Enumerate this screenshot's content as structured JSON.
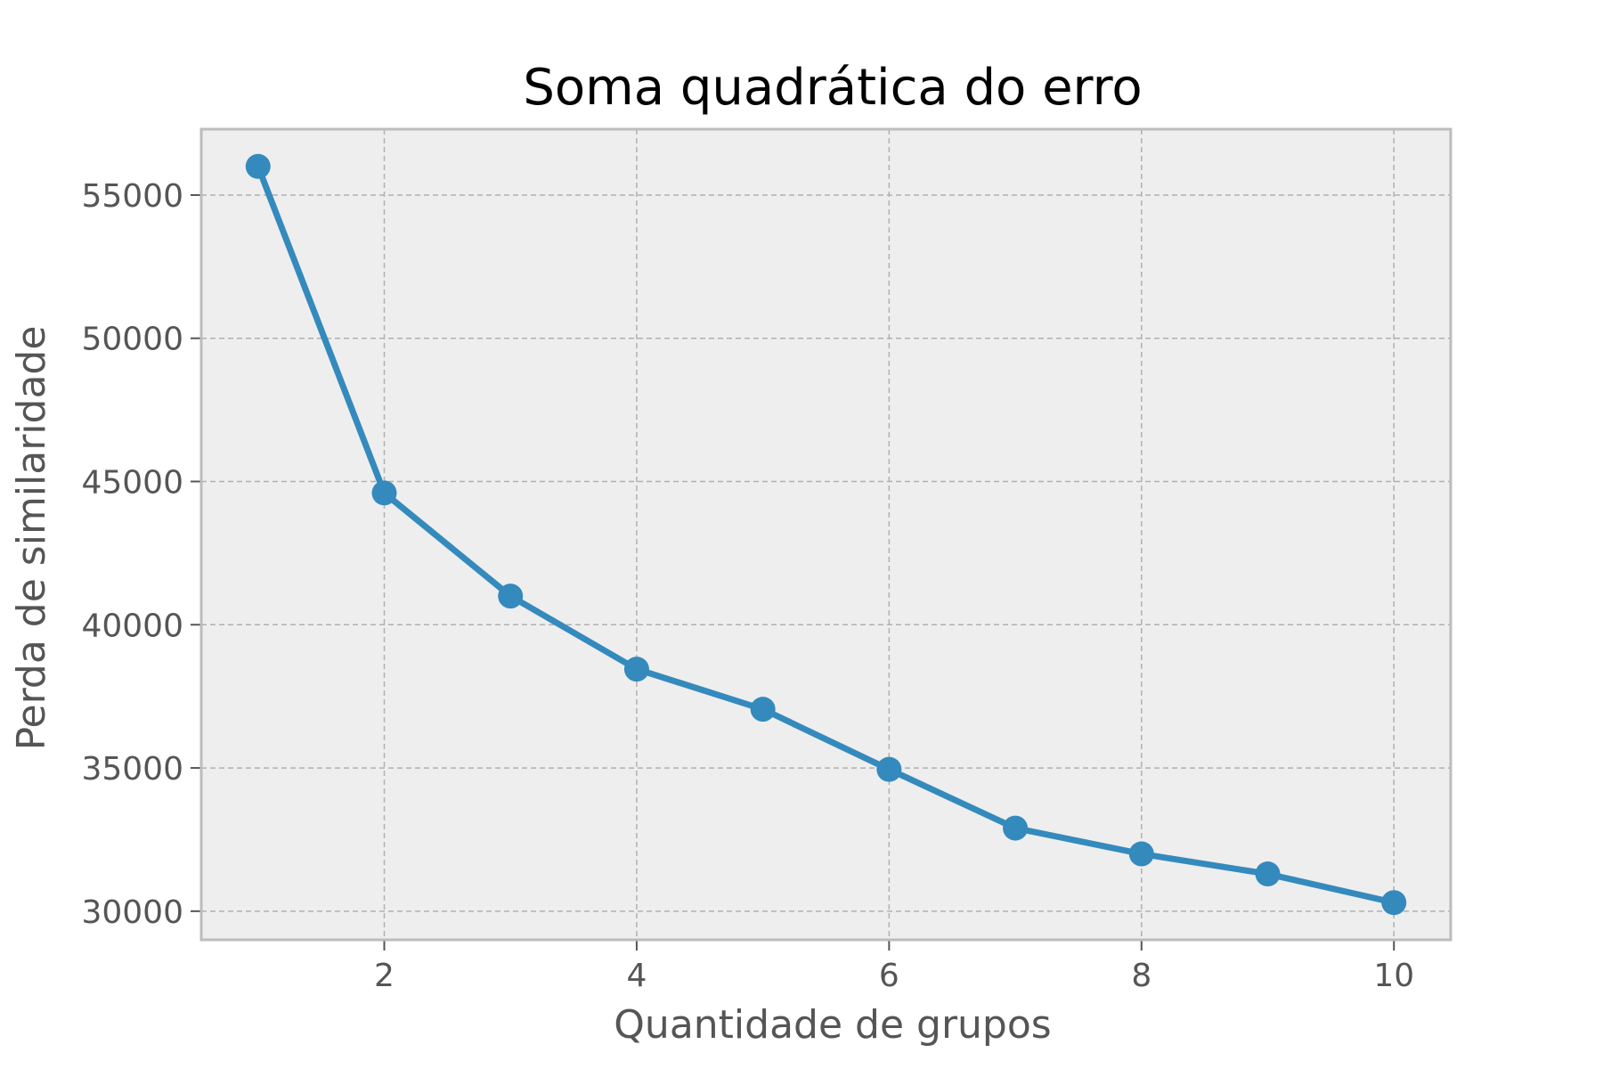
{
  "chart_data": {
    "type": "line",
    "title": "Soma quadrática do erro",
    "xlabel": "Quantidade de grupos",
    "ylabel": "Perda de similaridade",
    "x": [
      1,
      2,
      3,
      4,
      5,
      6,
      7,
      8,
      9,
      10
    ],
    "series": [
      {
        "values": [
          56000,
          44600,
          41000,
          38450,
          37050,
          34950,
          32900,
          32000,
          31300,
          30300
        ],
        "color": "#348ABD",
        "marker": "circle"
      }
    ],
    "xticks": [
      2,
      4,
      6,
      8,
      10
    ],
    "yticks": [
      30000,
      35000,
      40000,
      45000,
      50000,
      55000
    ],
    "xlim": [
      0.55,
      10.45
    ],
    "ylim": [
      29000,
      57300
    ],
    "grid": true,
    "plot_background": "#EEEEEE",
    "grid_color": "#B0B0B0",
    "spine_color": "#BCBCBC"
  }
}
